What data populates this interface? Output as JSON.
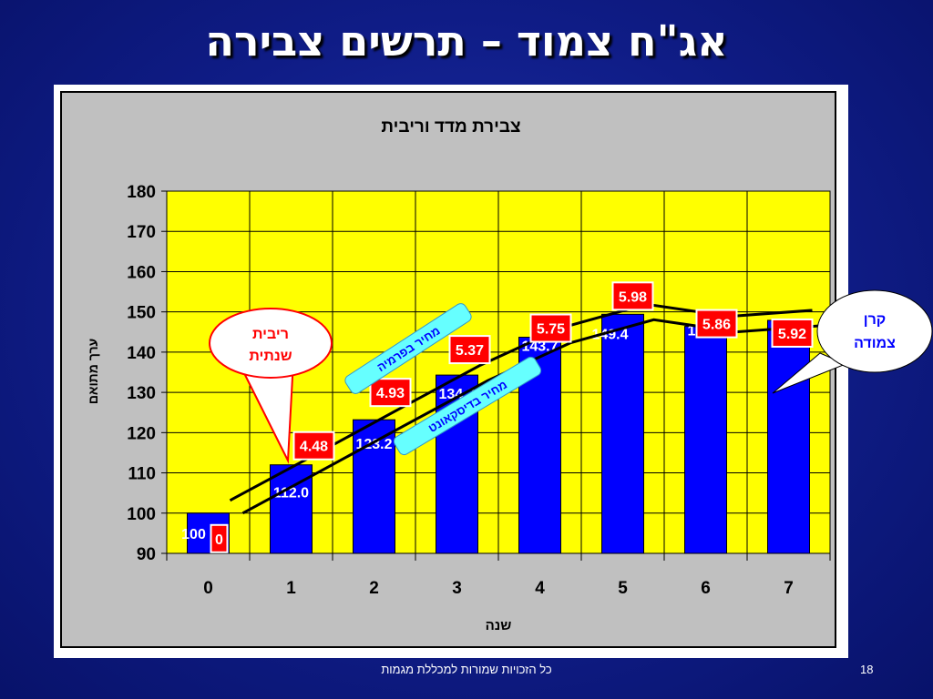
{
  "slide": {
    "title": "אג\"ח צמוד – תרשים צבירה",
    "footer": "כל הזכויות שמורות למכללת מגמות",
    "page_number": "18"
  },
  "colors": {
    "background": "#0f1c86",
    "plot_area": "#ffff00",
    "bars": "#0000ff",
    "interest_box": "#ff0000",
    "lines": "#000000",
    "callout_fill": "#ffffff",
    "callout_border": "#ff0000",
    "price_tag": "#66ffff"
  },
  "chart_data": {
    "type": "bar",
    "title": "צבירת מדד וריבית",
    "xlabel": "שנה",
    "ylabel": "ערך מתואם",
    "ylim": [
      90,
      180
    ],
    "yticks": [
      90,
      100,
      110,
      120,
      130,
      140,
      150,
      160,
      170,
      180
    ],
    "grid": true,
    "categories": [
      "0",
      "1",
      "2",
      "3",
      "4",
      "5",
      "6",
      "7"
    ],
    "values": [
      100,
      112.0,
      123.2,
      134.3,
      143.7,
      149.4,
      146.4,
      147.9
    ],
    "value_labels": [
      "100",
      "112.0",
      "123.2",
      "134.3",
      "143.7",
      "149.4",
      "146.4",
      "147.9"
    ],
    "annual_interest": [
      "0",
      "4.48",
      "4.93",
      "5.37",
      "5.75",
      "5.98",
      "5.86",
      "5.92"
    ],
    "annotations": {
      "interest_callout": "ריבית שנתית",
      "principal_callout": "קרן צמודה",
      "premium_price": "מחיר בפרמיה",
      "discount_price": "מחיר בדיסקאונט"
    }
  }
}
